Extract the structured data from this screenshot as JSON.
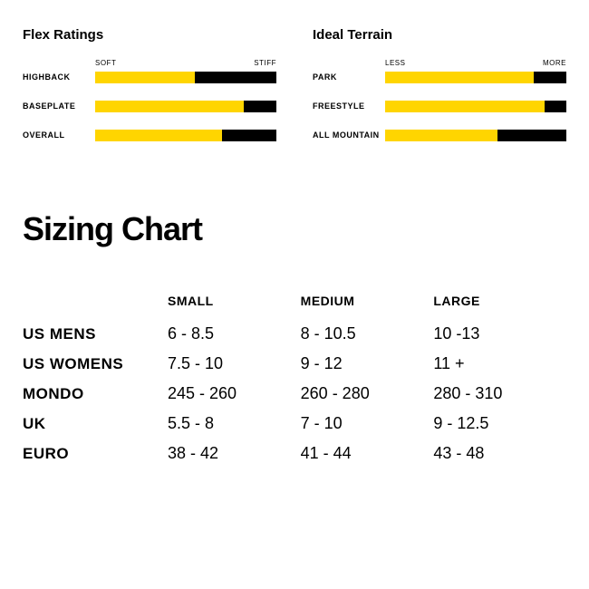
{
  "flex": {
    "title": "Flex Ratings",
    "scale_left": "SOFT",
    "scale_right": "STIFF",
    "rows": [
      {
        "label": "HIGHBACK",
        "pct": 55
      },
      {
        "label": "BASEPLATE",
        "pct": 82
      },
      {
        "label": "OVERALL",
        "pct": 70
      }
    ]
  },
  "terrain": {
    "title": "Ideal Terrain",
    "scale_left": "LESS",
    "scale_right": "MORE",
    "rows": [
      {
        "label": "PARK",
        "pct": 82
      },
      {
        "label": "FREESTYLE",
        "pct": 88
      },
      {
        "label": "ALL MOUNTAIN",
        "pct": 62
      }
    ]
  },
  "sizing": {
    "title": "Sizing Chart",
    "columns": [
      "SMALL",
      "MEDIUM",
      "LARGE"
    ],
    "rows": [
      {
        "label": "US MENS",
        "values": [
          "6 - 8.5",
          "8 - 10.5",
          "10 -13"
        ]
      },
      {
        "label": "US WOMENS",
        "values": [
          "7.5 - 10",
          "9 - 12",
          "11 +"
        ]
      },
      {
        "label": "MONDO",
        "values": [
          "245 - 260",
          "260 - 280",
          "280 - 310"
        ]
      },
      {
        "label": "UK",
        "values": [
          "5.5 - 8",
          "7 - 10",
          "9 - 12.5"
        ]
      },
      {
        "label": "EURO",
        "values": [
          "38 - 42",
          "41 - 44",
          "43 - 48"
        ]
      }
    ]
  },
  "colors": {
    "bar_fill": "#ffd500",
    "bar_track": "#000000",
    "text": "#000000",
    "background": "#ffffff"
  }
}
